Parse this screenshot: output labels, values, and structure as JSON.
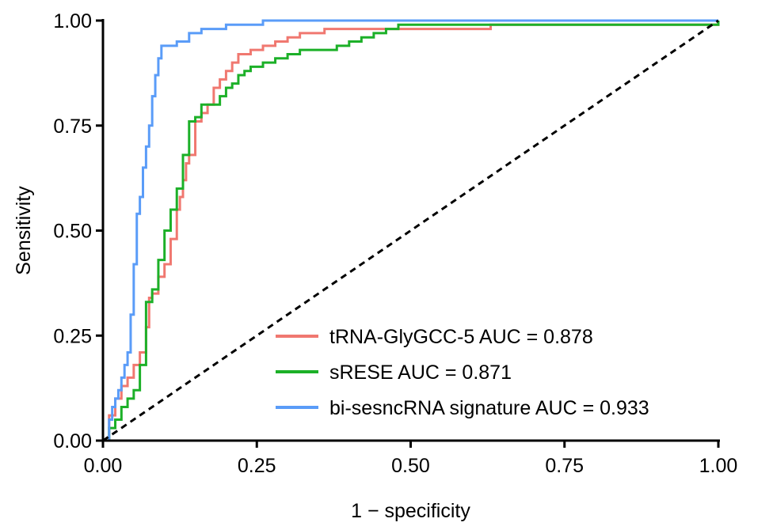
{
  "chart_data": {
    "type": "line",
    "title": "",
    "xlabel": "1 − specificity",
    "ylabel": "Sensitivity",
    "xlim": [
      0,
      1
    ],
    "ylim": [
      0,
      1
    ],
    "xticks": [
      "0.00",
      "0.25",
      "0.50",
      "0.75",
      "1.00"
    ],
    "yticks": [
      "0.00",
      "0.25",
      "0.50",
      "0.75",
      "1.00"
    ],
    "grid": false,
    "legend_position": "bottom-right",
    "series": [
      {
        "name": "tRNA-GlyGCC-5",
        "legend_label": "tRNA-GlyGCC-5 AUC = 0.878",
        "auc": 0.878,
        "color": "#f07870",
        "x": [
          0,
          0.01,
          0.02,
          0.03,
          0.04,
          0.05,
          0.06,
          0.07,
          0.075,
          0.08,
          0.09,
          0.1,
          0.11,
          0.12,
          0.125,
          0.13,
          0.135,
          0.14,
          0.15,
          0.16,
          0.17,
          0.18,
          0.19,
          0.2,
          0.21,
          0.22,
          0.24,
          0.26,
          0.28,
          0.3,
          0.32,
          0.34,
          0.36,
          0.4,
          0.45,
          0.5,
          0.55,
          0.6,
          0.63,
          1.0
        ],
        "y": [
          0,
          0.06,
          0.1,
          0.13,
          0.15,
          0.18,
          0.21,
          0.27,
          0.34,
          0.35,
          0.39,
          0.42,
          0.48,
          0.55,
          0.58,
          0.62,
          0.66,
          0.68,
          0.76,
          0.78,
          0.8,
          0.84,
          0.86,
          0.88,
          0.9,
          0.92,
          0.93,
          0.94,
          0.95,
          0.96,
          0.97,
          0.97,
          0.98,
          0.98,
          0.98,
          0.98,
          0.98,
          0.98,
          0.99,
          1.0
        ]
      },
      {
        "name": "sRESE",
        "legend_label": "sRESE AUC = 0.871",
        "auc": 0.871,
        "color": "#1cb028",
        "x": [
          0,
          0.01,
          0.02,
          0.03,
          0.04,
          0.05,
          0.06,
          0.07,
          0.08,
          0.09,
          0.1,
          0.11,
          0.12,
          0.13,
          0.14,
          0.15,
          0.16,
          0.17,
          0.18,
          0.19,
          0.2,
          0.21,
          0.22,
          0.23,
          0.24,
          0.26,
          0.28,
          0.3,
          0.32,
          0.35,
          0.38,
          0.4,
          0.42,
          0.44,
          0.46,
          0.48,
          0.49,
          1.0
        ],
        "y": [
          0,
          0.03,
          0.05,
          0.08,
          0.1,
          0.12,
          0.18,
          0.33,
          0.36,
          0.43,
          0.5,
          0.55,
          0.6,
          0.68,
          0.76,
          0.77,
          0.8,
          0.8,
          0.8,
          0.82,
          0.84,
          0.85,
          0.87,
          0.88,
          0.89,
          0.9,
          0.91,
          0.92,
          0.93,
          0.93,
          0.94,
          0.95,
          0.96,
          0.97,
          0.98,
          0.99,
          0.99,
          1.0
        ]
      },
      {
        "name": "bi-sesncRNA signature",
        "legend_label": "bi-sesncRNA signature AUC = 0.933",
        "auc": 0.933,
        "color": "#5a9cf8",
        "x": [
          0,
          0.01,
          0.015,
          0.02,
          0.025,
          0.03,
          0.035,
          0.04,
          0.045,
          0.05,
          0.055,
          0.06,
          0.065,
          0.07,
          0.075,
          0.08,
          0.085,
          0.09,
          0.095,
          0.1,
          0.12,
          0.14,
          0.16,
          0.18,
          0.2,
          0.22,
          0.24,
          0.25,
          0.26,
          0.27,
          0.28,
          1.0
        ],
        "y": [
          0,
          0.05,
          0.08,
          0.1,
          0.12,
          0.15,
          0.18,
          0.21,
          0.3,
          0.42,
          0.54,
          0.58,
          0.65,
          0.7,
          0.75,
          0.82,
          0.87,
          0.91,
          0.94,
          0.94,
          0.95,
          0.97,
          0.98,
          0.98,
          0.99,
          0.99,
          0.99,
          0.99,
          1.0,
          1.0,
          1.0,
          1.0
        ]
      }
    ],
    "reference_line": {
      "x": [
        0,
        1
      ],
      "y": [
        0,
        1
      ],
      "style": "dashed",
      "color": "#000000"
    }
  }
}
